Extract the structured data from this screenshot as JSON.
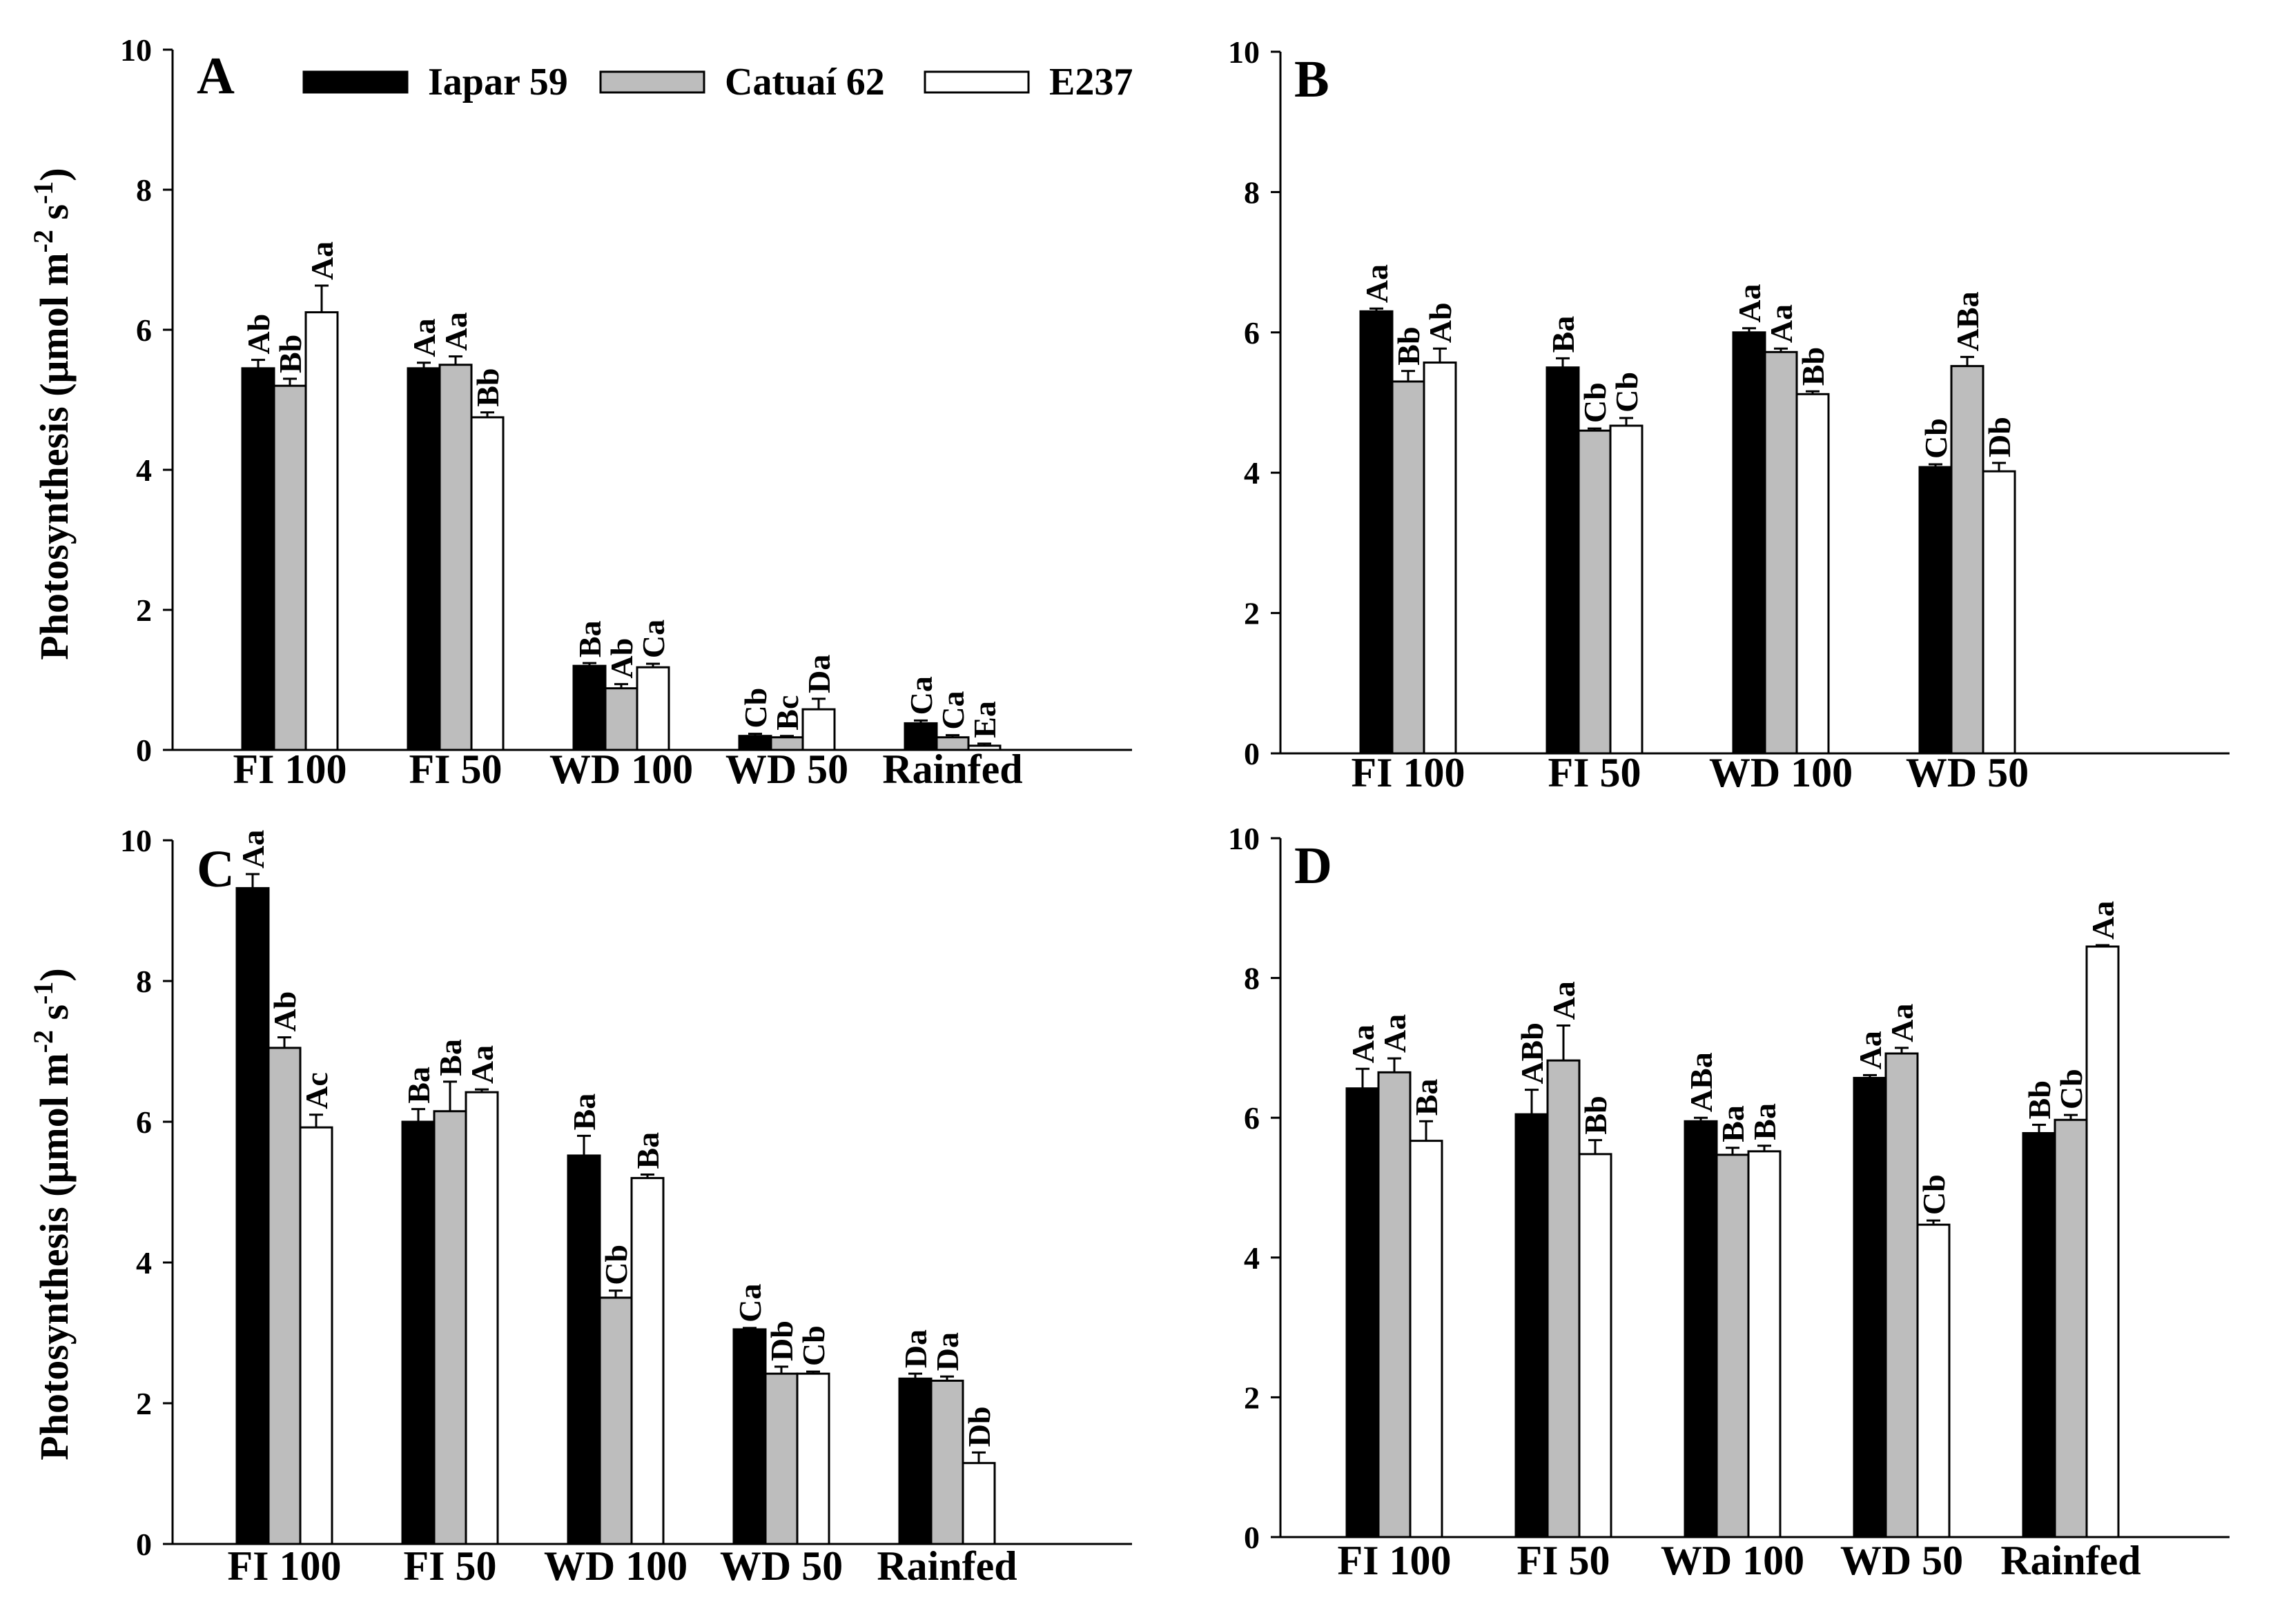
{
  "legend": {
    "series": [
      {
        "name": "Iapar 59",
        "color": "#000000"
      },
      {
        "name": "Catuaí 62",
        "color": "#bdbdbd"
      },
      {
        "name": "E237",
        "color": "#ffffff"
      }
    ]
  },
  "y_label_main": "Photosynthesis (μmol m",
  "y_label_sup1": "-2",
  "y_label_mid": " s",
  "y_label_sup2": "-1",
  "y_label_end": ")",
  "chart_data": [
    {
      "type": "bar",
      "title": "A",
      "categories": [
        "FI 100",
        "FI 50",
        "WD 100",
        "WD 50",
        "Rainfed"
      ],
      "ylabel": "Photosynthesis (μmol m-2 s-1)",
      "ylim": [
        0,
        10
      ],
      "yticks": [
        0,
        2,
        4,
        6,
        8,
        10
      ],
      "series": [
        {
          "name": "Iapar 59",
          "values": [
            5.45,
            5.45,
            1.2,
            0.2,
            0.38
          ],
          "errors": [
            0.12,
            0.08,
            0.04,
            0.03,
            0.04
          ],
          "labels": [
            "Ab",
            "Aa",
            "Ba",
            "Cb",
            "Ca"
          ]
        },
        {
          "name": "Catuaí 62",
          "values": [
            5.2,
            5.5,
            0.88,
            0.18,
            0.18
          ],
          "errors": [
            0.1,
            0.12,
            0.06,
            0.02,
            0.03
          ],
          "labels": [
            "Bb",
            "Aa",
            "Ab",
            "Bc",
            "Ca"
          ]
        },
        {
          "name": "E237",
          "values": [
            6.25,
            4.75,
            1.18,
            0.58,
            0.06
          ],
          "errors": [
            0.38,
            0.07,
            0.05,
            0.15,
            0.03
          ],
          "labels": [
            "Aa",
            "Bb",
            "Ca",
            "Da",
            "Ea"
          ]
        }
      ]
    },
    {
      "type": "bar",
      "title": "B",
      "categories": [
        "FI 100",
        "FI 50",
        "WD 100",
        "WD 50"
      ],
      "ylabel": "",
      "ylim": [
        0,
        10
      ],
      "yticks": [
        0,
        2,
        4,
        6,
        8,
        10
      ],
      "series": [
        {
          "name": "Iapar 59",
          "values": [
            6.3,
            5.5,
            6.0,
            4.08
          ],
          "errors": [
            0.04,
            0.13,
            0.06,
            0.04
          ],
          "labels": [
            "Aa",
            "Ba",
            "Aa",
            "Cb"
          ]
        },
        {
          "name": "Catuaí 62",
          "values": [
            5.3,
            4.6,
            5.72,
            5.52
          ],
          "errors": [
            0.15,
            0.03,
            0.05,
            0.13
          ],
          "labels": [
            "Bb",
            "Cb",
            "Aa",
            "ABa"
          ]
        },
        {
          "name": "E237",
          "values": [
            5.57,
            4.67,
            5.12,
            4.02
          ],
          "errors": [
            0.2,
            0.11,
            0.04,
            0.12
          ],
          "labels": [
            "Ab",
            "Cb",
            "Bb",
            "Db"
          ]
        }
      ]
    },
    {
      "type": "bar",
      "title": "C",
      "categories": [
        "FI 100",
        "FI 50",
        "WD 100",
        "WD 50",
        "Rainfed"
      ],
      "ylabel": "Photosynthesis (μmol m-2 s-1)",
      "ylim": [
        0,
        10
      ],
      "yticks": [
        0,
        2,
        4,
        6,
        8,
        10
      ],
      "series": [
        {
          "name": "Iapar 59",
          "values": [
            9.32,
            6.0,
            5.52,
            3.05,
            2.35
          ],
          "errors": [
            0.2,
            0.18,
            0.28,
            0.02,
            0.07
          ],
          "labels": [
            "Aa",
            "Ba",
            "Ba",
            "Ca",
            "Da"
          ]
        },
        {
          "name": "Catuaí 62",
          "values": [
            7.05,
            6.15,
            3.5,
            2.42,
            2.32
          ],
          "errors": [
            0.15,
            0.42,
            0.1,
            0.1,
            0.06
          ],
          "labels": [
            "Ab",
            "Ba",
            "Cb",
            "Db",
            "Da"
          ]
        },
        {
          "name": "E237",
          "values": [
            5.92,
            6.42,
            5.2,
            2.42,
            1.15
          ],
          "errors": [
            0.18,
            0.04,
            0.05,
            0.03,
            0.15
          ],
          "labels": [
            "Ac",
            "Aa",
            "Ba",
            "Cb",
            "Db"
          ]
        }
      ]
    },
    {
      "type": "bar",
      "title": "D",
      "categories": [
        "FI 100",
        "FI 50",
        "WD 100",
        "WD 50",
        "Rainfed"
      ],
      "ylabel": "",
      "ylim": [
        0,
        10
      ],
      "yticks": [
        0,
        2,
        4,
        6,
        8,
        10
      ],
      "series": [
        {
          "name": "Iapar 59",
          "values": [
            6.42,
            6.05,
            5.95,
            6.57,
            5.78
          ],
          "errors": [
            0.28,
            0.35,
            0.05,
            0.04,
            0.12
          ],
          "labels": [
            "Aa",
            "ABb",
            "ABa",
            "Aa",
            "Bb"
          ]
        },
        {
          "name": "Catuaí 62",
          "values": [
            6.65,
            6.82,
            5.47,
            6.92,
            5.97
          ],
          "errors": [
            0.2,
            0.5,
            0.1,
            0.08,
            0.07
          ],
          "labels": [
            "Aa",
            "Aa",
            "Ba",
            "Aa",
            "Cb"
          ]
        },
        {
          "name": "E237",
          "values": [
            5.67,
            5.48,
            5.52,
            4.47,
            8.45
          ],
          "errors": [
            0.28,
            0.2,
            0.08,
            0.06,
            0.02
          ],
          "labels": [
            "Ba",
            "Bb",
            "Ba",
            "Cb",
            "Aa"
          ]
        }
      ]
    }
  ]
}
